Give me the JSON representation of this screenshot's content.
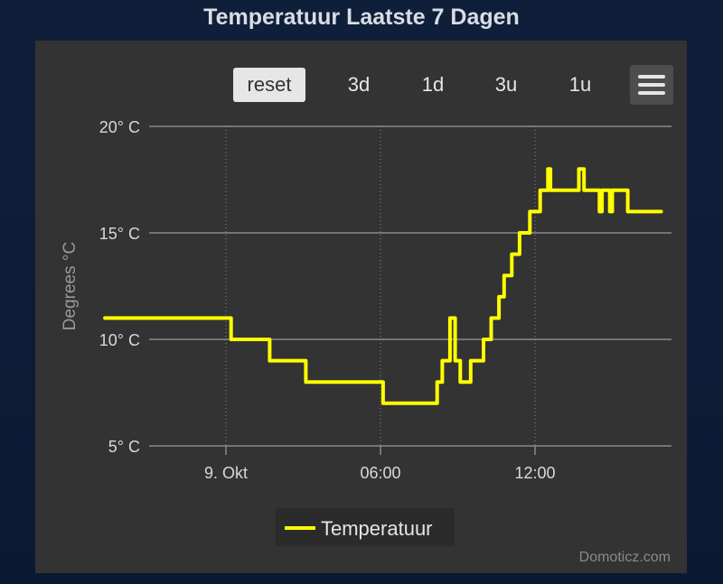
{
  "title": "Temperatuur Laatste 7 Dagen",
  "toolbar": {
    "reset_label": "reset",
    "zoom_buttons": [
      "3d",
      "1d",
      "3u",
      "1u"
    ],
    "menu_icon": "hamburger-menu-icon"
  },
  "credits": "Domoticz.com",
  "colors": {
    "background": "#0f1f3a",
    "panel": "#333333",
    "series": "#ffff00",
    "text": "#e6e6e6"
  },
  "chart_data": {
    "type": "line",
    "title": "Temperatuur Laatste 7 Dagen",
    "xlabel": "",
    "ylabel": "Degrees °C",
    "y_tick_labels": [
      "5° C",
      "10° C",
      "15° C",
      "20° C"
    ],
    "y_ticks": [
      5,
      10,
      15,
      20
    ],
    "ylim": [
      5,
      20
    ],
    "x_unit": "hours since 9 Okt 00:00",
    "xlim": [
      -3.9,
      15.5
    ],
    "x_ticks": [
      0,
      6,
      12
    ],
    "x_tick_labels": [
      "9. Okt",
      "06:00",
      "12:00"
    ],
    "grid": "horizontal lines at y ticks, dotted vertical lines at x ticks",
    "legend": "bottom-center",
    "series": [
      {
        "name": "Temperatuur",
        "color": "#ffff00",
        "step": true,
        "points": [
          [
            -2.3,
            11
          ],
          [
            0.2,
            10
          ],
          [
            1.7,
            9
          ],
          [
            3.1,
            8
          ],
          [
            6.1,
            7
          ],
          [
            8.2,
            8
          ],
          [
            8.4,
            9
          ],
          [
            8.7,
            11
          ],
          [
            8.9,
            9
          ],
          [
            9.1,
            8
          ],
          [
            9.5,
            9
          ],
          [
            10.0,
            10
          ],
          [
            10.3,
            11
          ],
          [
            10.6,
            12
          ],
          [
            10.8,
            13
          ],
          [
            11.1,
            14
          ],
          [
            11.4,
            15
          ],
          [
            11.8,
            16
          ],
          [
            12.2,
            17
          ],
          [
            12.5,
            18
          ],
          [
            12.6,
            17
          ],
          [
            13.7,
            18
          ],
          [
            13.9,
            17
          ],
          [
            14.5,
            16
          ],
          [
            14.6,
            17
          ],
          [
            14.9,
            16
          ],
          [
            15.0,
            17
          ],
          [
            15.6,
            16
          ],
          [
            16.9,
            16
          ]
        ]
      }
    ]
  }
}
